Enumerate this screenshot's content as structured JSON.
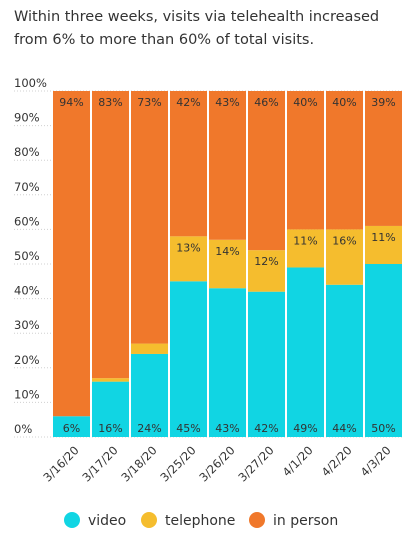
{
  "subtitle": "Within three weeks, visits via telehealth increased from 6% to more than 60% of total visits.",
  "chart_data": {
    "type": "bar",
    "stacked": true,
    "categories": [
      "3/16/20",
      "3/17/20",
      "3/18/20",
      "3/25/20",
      "3/26/20",
      "3/27/20",
      "4/1/20",
      "4/2/20",
      "4/3/20"
    ],
    "series": [
      {
        "name": "video",
        "color": "#11d5e3",
        "values": [
          6,
          16,
          24,
          45,
          43,
          42,
          49,
          44,
          50
        ],
        "labels": [
          "6%",
          "16%",
          "24%",
          "45%",
          "43%",
          "42%",
          "49%",
          "44%",
          "50%"
        ]
      },
      {
        "name": "telephone",
        "color": "#f5bd2e",
        "values": [
          0,
          1,
          3,
          13,
          14,
          12,
          11,
          16,
          11
        ],
        "labels": [
          "",
          "",
          "",
          "13%",
          "14%",
          "12%",
          "11%",
          "16%",
          "11%"
        ]
      },
      {
        "name": "in person",
        "color": "#f0782b",
        "values": [
          94,
          83,
          73,
          42,
          43,
          46,
          40,
          40,
          39
        ],
        "labels": [
          "94%",
          "83%",
          "73%",
          "42%",
          "43%",
          "46%",
          "40%",
          "40%",
          "39%"
        ]
      }
    ],
    "yticks": [
      "0%",
      "10%",
      "20%",
      "30%",
      "40%",
      "50%",
      "60%",
      "70%",
      "80%",
      "90%",
      "100%"
    ],
    "ylim": [
      0,
      100
    ],
    "grid": true,
    "legend_position": "bottom"
  }
}
